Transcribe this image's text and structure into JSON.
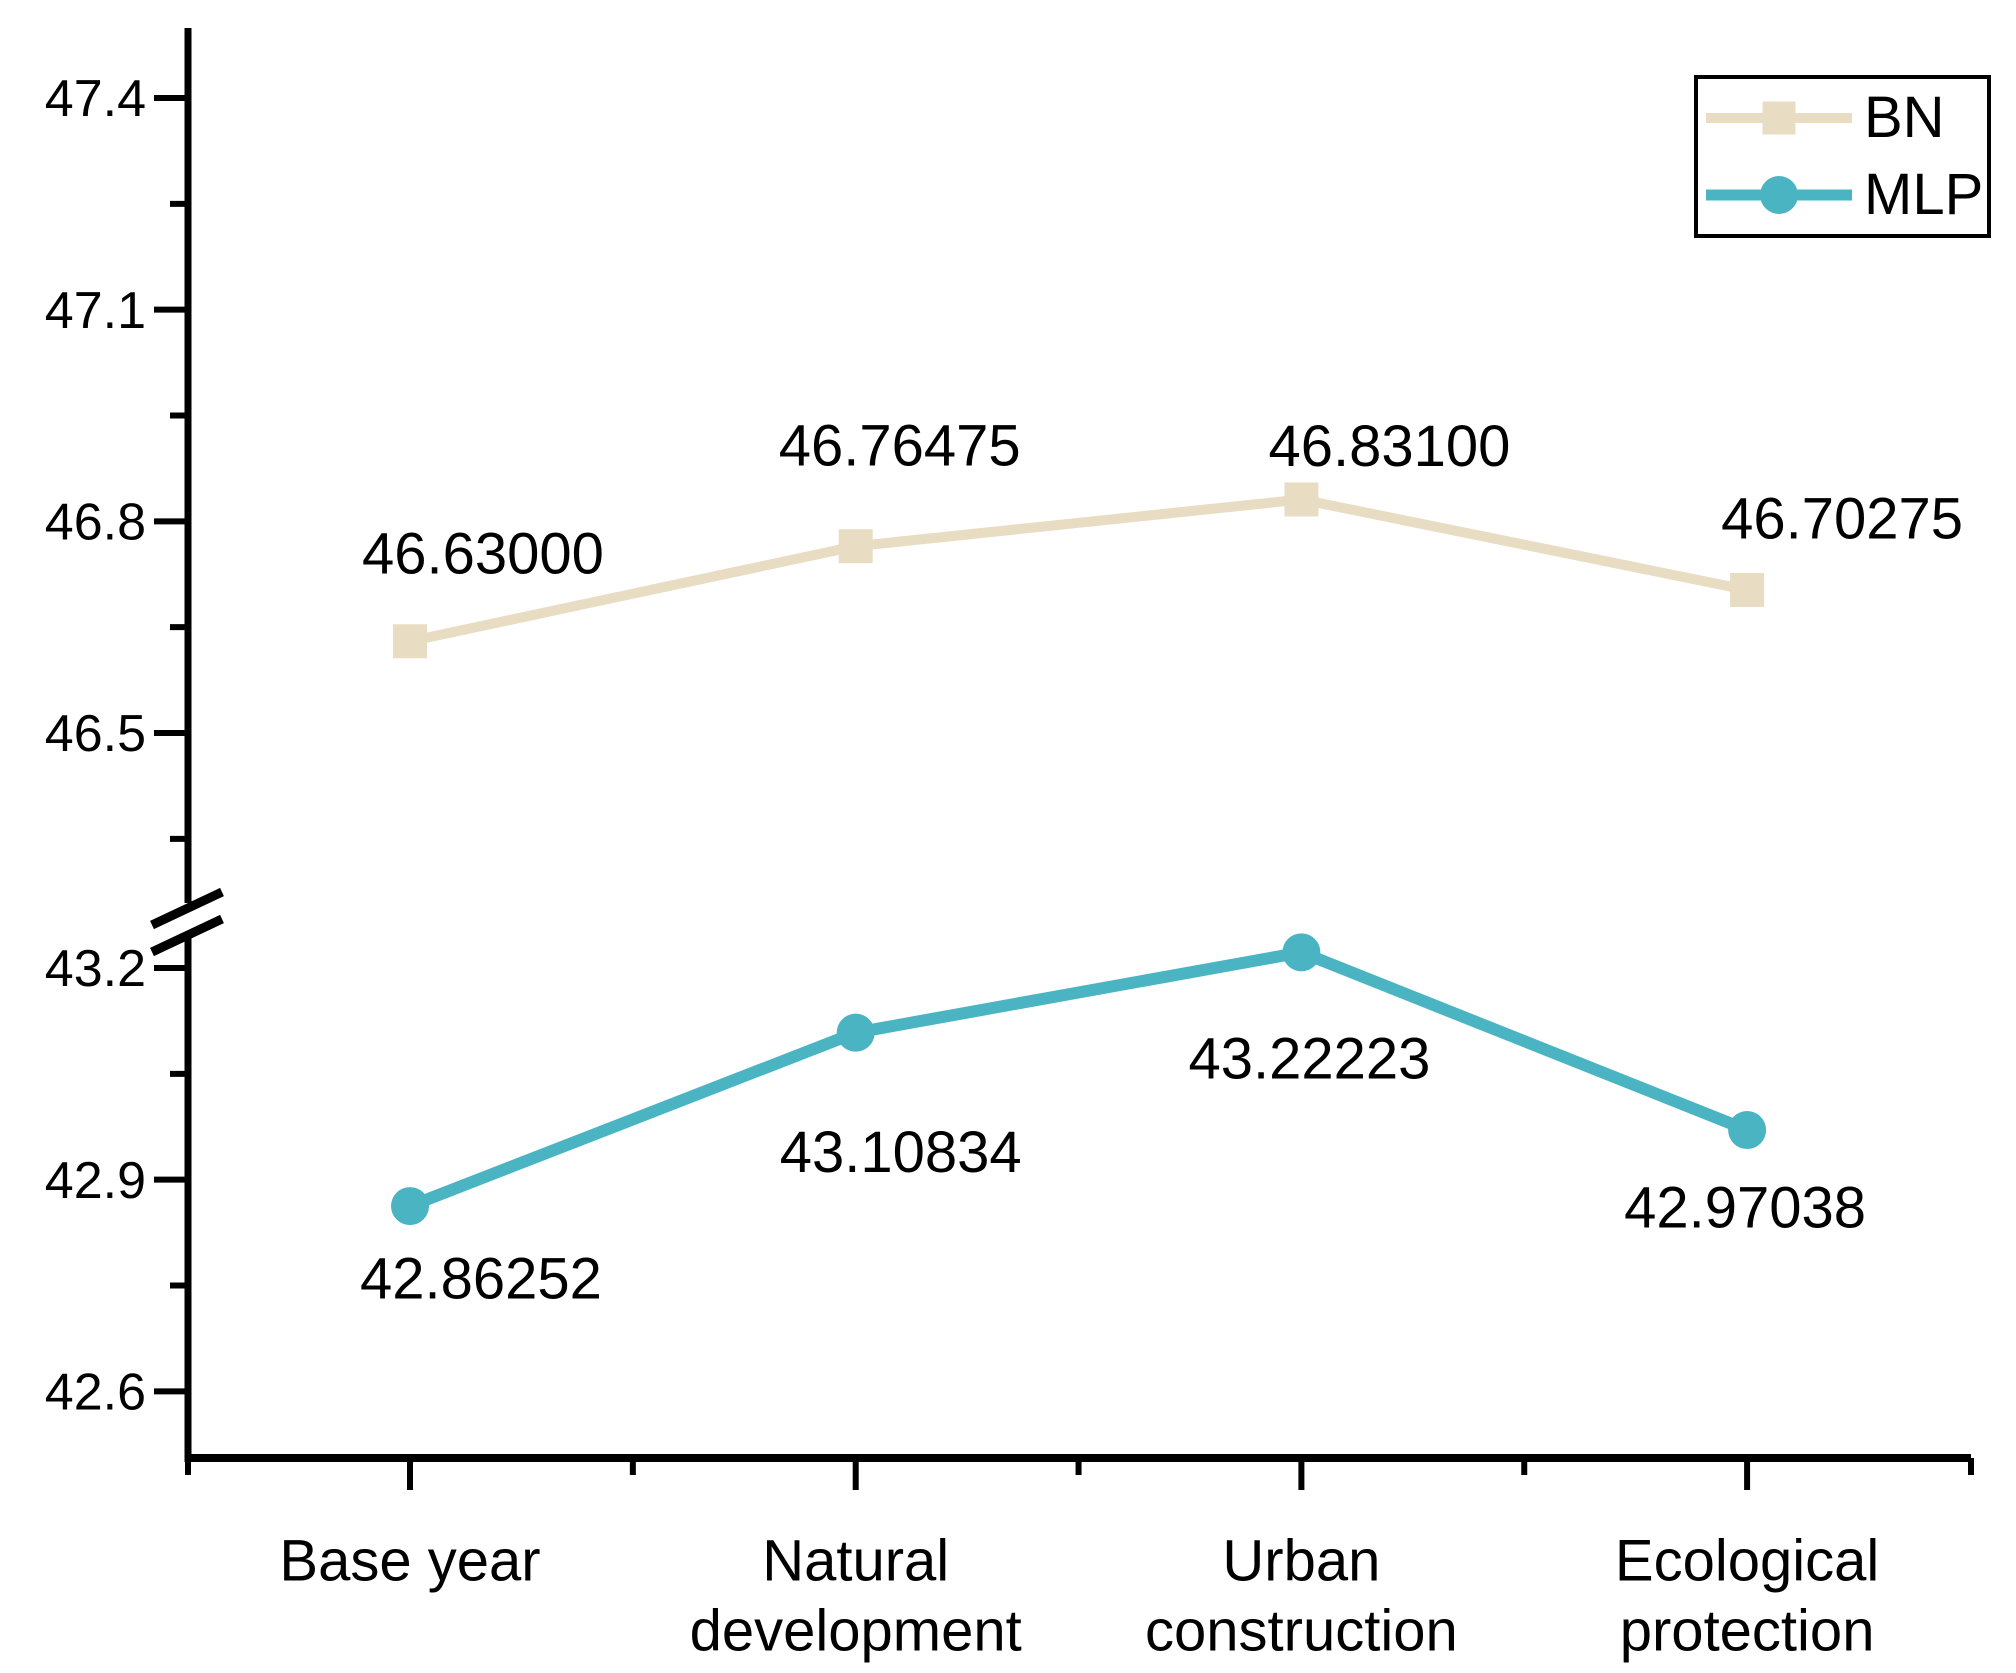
{
  "chart_data": {
    "type": "line",
    "title": "",
    "categories": [
      "Base year",
      "Natural development",
      "Urban construction",
      "Ecological protection"
    ],
    "category_label_lines": [
      [
        "Base year"
      ],
      [
        "Natural",
        "development"
      ],
      [
        "Urban",
        "construction"
      ],
      [
        "Ecological",
        "protection"
      ]
    ],
    "series": [
      {
        "name": "BN",
        "marker": "square",
        "color": "#e8dcc3",
        "values": [
          46.63,
          46.76475,
          46.831,
          46.70275
        ],
        "point_labels": [
          "46.63000",
          "46.76475",
          "46.83100",
          "46.70275"
        ]
      },
      {
        "name": "MLP",
        "marker": "circle",
        "color": "#4ab4c3",
        "values": [
          42.86252,
          43.10834,
          43.22223,
          42.97038
        ],
        "point_labels": [
          "42.86252",
          "43.10834",
          "43.22223",
          "42.97038"
        ]
      }
    ],
    "y_axis": {
      "broken": true,
      "break_marks": "double diagonal slash on axis between segments",
      "segments": [
        {
          "value_range": [
            46.5,
            47.4
          ],
          "major_ticks": [
            47.4,
            47.1,
            46.8,
            46.5
          ],
          "major_tick_labels": [
            "47.4",
            "47.1",
            "46.8",
            "46.5"
          ],
          "minor_ticks": [
            47.25,
            46.95,
            46.65,
            46.35
          ]
        },
        {
          "value_range": [
            42.6,
            43.2
          ],
          "major_ticks": [
            43.2,
            42.9,
            42.6
          ],
          "major_tick_labels": [
            "43.2",
            "42.9",
            "42.6"
          ],
          "minor_ticks": [
            43.05,
            42.75
          ]
        }
      ]
    },
    "x_axis": {
      "ticks": "major ticks at category centers, minor ticks at category boundaries and axis ends"
    },
    "legend": {
      "position": "top-right",
      "entries": [
        "BN",
        "MLP"
      ]
    },
    "grid": false,
    "background": "#ffffff",
    "text_color": "#000000"
  }
}
